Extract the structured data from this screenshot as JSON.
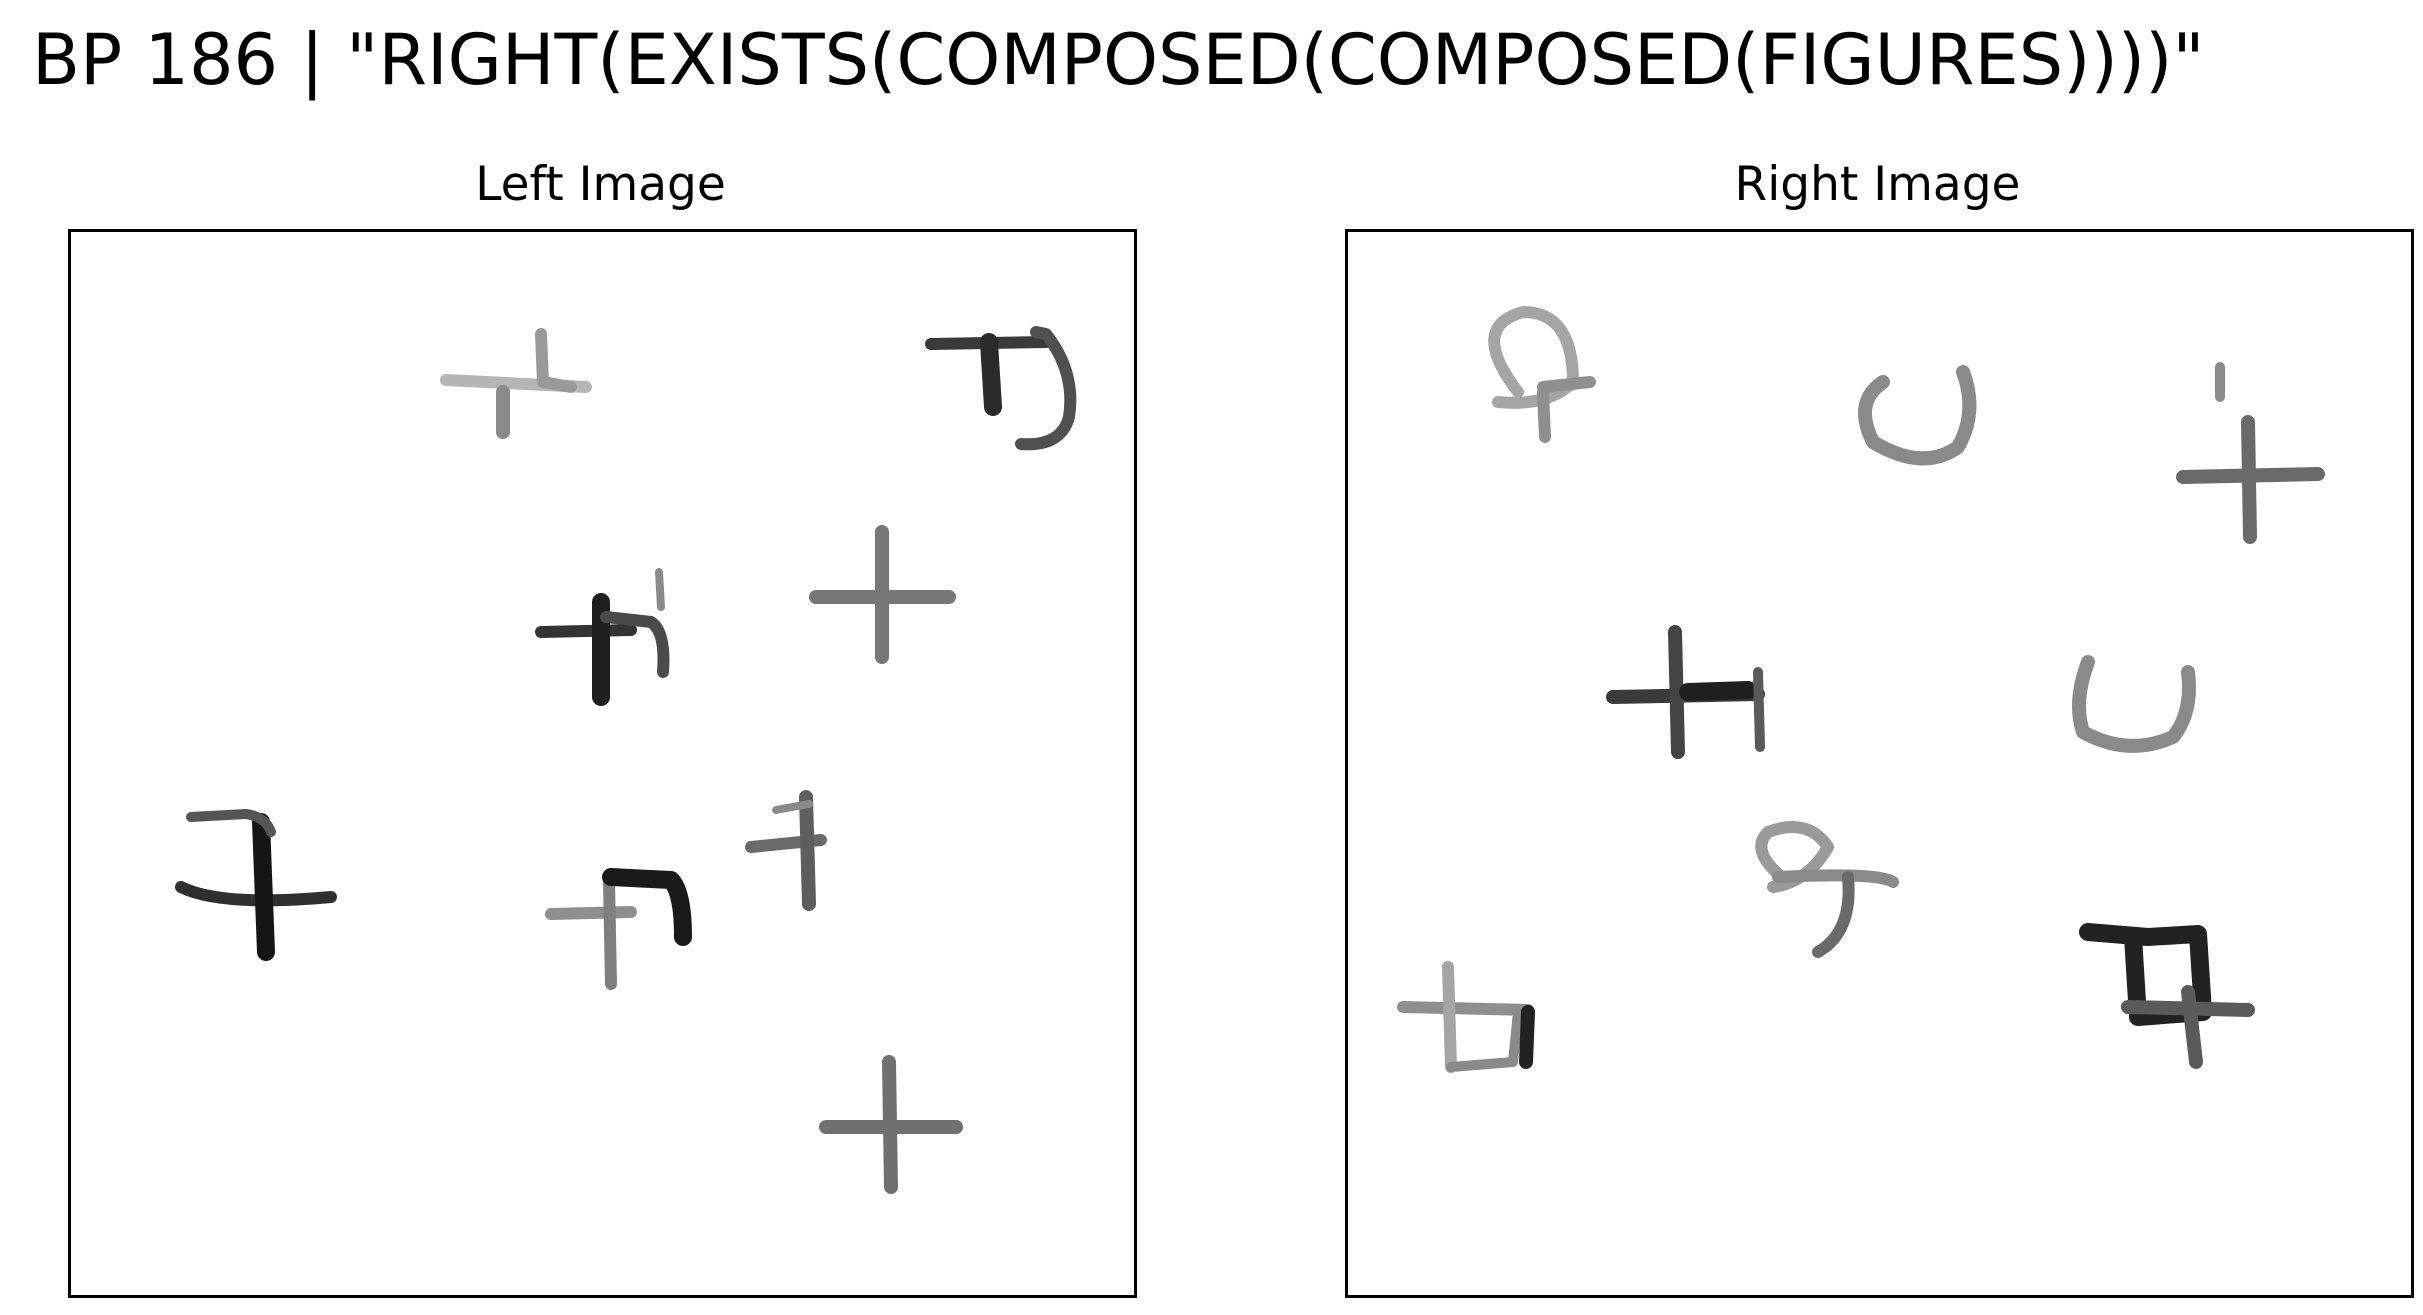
{
  "title": "BP 186 | \"RIGHT(EXISTS(COMPOSED(COMPOSED(FIGURES))))\"",
  "left_panel": {
    "title": "Left Image",
    "figures": [
      {
        "name": "cross-with-hook",
        "shade": "#8a8a8a"
      },
      {
        "name": "cross-with-arc",
        "shade": "#2b2b2b"
      },
      {
        "name": "cross-with-hook",
        "shade": "#1f1f1f"
      },
      {
        "name": "plus",
        "shade": "#777777"
      },
      {
        "name": "cross-with-hook",
        "shade": "#151515"
      },
      {
        "name": "cross-with-hook",
        "shade": "#2a2a2a"
      },
      {
        "name": "cross-with-hook",
        "shade": "#5e5e5e"
      },
      {
        "name": "plus",
        "shade": "#707070"
      }
    ]
  },
  "right_panel": {
    "title": "Right Image",
    "figures": [
      {
        "name": "circle-with-tail",
        "shade": "#8f8f8f"
      },
      {
        "name": "u-arc",
        "shade": "#8a8a8a"
      },
      {
        "name": "plus-with-tick",
        "shade": "#6a6a6a"
      },
      {
        "name": "cross-with-bar",
        "shade": "#3a3a3a"
      },
      {
        "name": "u-arc",
        "shade": "#8a8a8a"
      },
      {
        "name": "circle-with-tail",
        "shade": "#7a7a7a"
      },
      {
        "name": "cross-with-box",
        "shade": "#222222"
      },
      {
        "name": "cross-with-box",
        "shade": "#7a7a7a"
      }
    ]
  }
}
